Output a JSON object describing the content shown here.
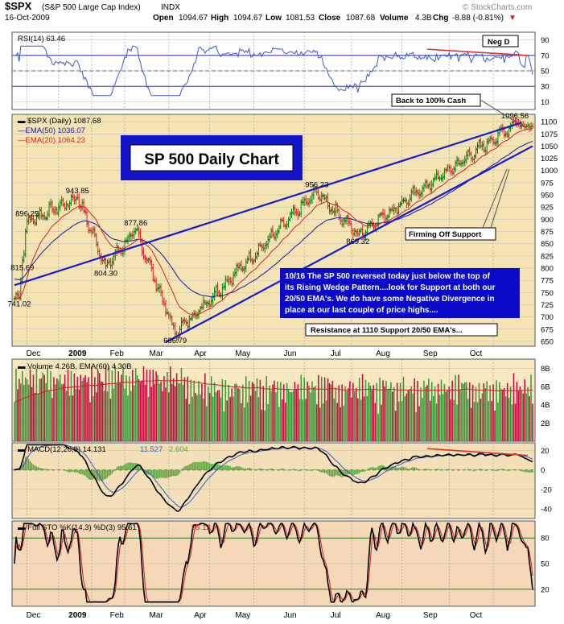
{
  "header": {
    "symbol": "$SPX",
    "name": "(S&P 500 Large Cap Index)",
    "exchange": "INDX",
    "date": "16-Oct-2009",
    "watermark": "© StockCharts.com",
    "quote": [
      {
        "label": "Open",
        "value": "1094.67"
      },
      {
        "label": "High",
        "value": "1094.67"
      },
      {
        "label": "Low",
        "value": "1081.53"
      },
      {
        "label": "Close",
        "value": "1087.68"
      },
      {
        "label": "Volume",
        "value": "4.3B"
      },
      {
        "label": "Chg",
        "value": "-8.88 (-0.81%)"
      }
    ],
    "chg_arrow": "▼"
  },
  "colors": {
    "price_bg": "#f4e4b4",
    "rsi_bg": "#ffffff",
    "vol_bg": "#f8e8c0",
    "macd_bg": "#f4e0b8",
    "sto_bg": "#f4d8b8",
    "ema50": "#1a1aa0",
    "ema20": "#dd2020",
    "up": "#0a7a0a",
    "down": "#d82020",
    "trendline": "#1a1ad0",
    "divergence": "#e03020",
    "note_bg": "#0a0ac8",
    "vol_up": "#3a9a3a",
    "vol_down": "#c01040",
    "rsi_line": "#3a5ac8",
    "hist": "#5aa840"
  },
  "chart_data": [
    {
      "panel": "rsi",
      "type": "line",
      "legend": "RSI(14)",
      "legend_value": "63.46",
      "ylim": [
        0,
        100
      ],
      "yticks": [
        10,
        30,
        50,
        70,
        90
      ],
      "reference_lines": [
        30,
        50,
        70
      ],
      "annotation": "Neg D"
    },
    {
      "panel": "price",
      "type": "line",
      "legend": [
        {
          "name": "$SPX (Daily)",
          "value": "1087.68"
        },
        {
          "name": "EMA(50)",
          "value": "1036.07"
        },
        {
          "name": "EMA(20)",
          "value": "1064.23"
        }
      ],
      "ylim": [
        640,
        1115
      ],
      "yticks": [
        650,
        675,
        700,
        725,
        750,
        775,
        800,
        825,
        850,
        875,
        900,
        925,
        950,
        975,
        1000,
        1025,
        1050,
        1075,
        1100
      ],
      "title_box": "SP 500 Daily Chart",
      "x_labels": [
        "Dec",
        "2009",
        "Feb",
        "Mar",
        "Apr",
        "May",
        "Jun",
        "Jul",
        "Aug",
        "Sep",
        "Oct"
      ],
      "key_points": [
        {
          "x": 3,
          "y": 741.02,
          "label": "741.02"
        },
        {
          "x": 5,
          "y": 815.69,
          "label": "815.69"
        },
        {
          "x": 8,
          "y": 896.25,
          "label": "896.25"
        },
        {
          "x": 40,
          "y": 943.85,
          "label": "943.85"
        },
        {
          "x": 58,
          "y": 804.3,
          "label": "804.30"
        },
        {
          "x": 77,
          "y": 877.86,
          "label": "877.86"
        },
        {
          "x": 102,
          "y": 666.79,
          "label": "666.79"
        },
        {
          "x": 192,
          "y": 956.23,
          "label": "956.23"
        },
        {
          "x": 218,
          "y": 869.32,
          "label": "869.32"
        },
        {
          "x": 318,
          "y": 1096.56,
          "label": "1096.56"
        }
      ],
      "annotations": {
        "cash": "Back to 100% Cash",
        "support": "Firming Off Support",
        "resistance": "Resistance at 1110 Support 20/50 EMA's...",
        "note_lines": [
          "10/16  The SP 500 reversed today just below the top of",
          "its Rising Wedge Pattern....look for Support at both our",
          "20/50 EMA's.  We do have some Negative Divergence in",
          "place at our last couple of price highs...."
        ]
      }
    },
    {
      "panel": "volume",
      "type": "bar",
      "legend": "Volume 4.26B, EMA(60) 4.30B",
      "ylim": [
        0,
        9
      ],
      "yticks": [
        2,
        4,
        6,
        8
      ],
      "ytick_labels": [
        "2B",
        "4B",
        "6B",
        "8B"
      ]
    },
    {
      "panel": "macd",
      "type": "line",
      "legend": "MACD(12,26,9)",
      "legend_values": [
        "14.131",
        "11.527",
        "2.604"
      ],
      "ylim": [
        -50,
        28
      ],
      "yticks": [
        -40,
        -20,
        0,
        20
      ]
    },
    {
      "panel": "sto",
      "type": "line",
      "legend": "Full STO %K(14,3) %D(3)",
      "legend_values": [
        "95.61",
        "95.12"
      ],
      "ylim": [
        0,
        100
      ],
      "yticks": [
        20,
        50,
        80
      ],
      "reference_lines": [
        20,
        80
      ]
    }
  ],
  "x_axis_labels": [
    "Dec",
    "2009",
    "Feb",
    "Mar",
    "Apr",
    "May",
    "Jun",
    "Jul",
    "Aug",
    "Sep",
    "Oct"
  ]
}
